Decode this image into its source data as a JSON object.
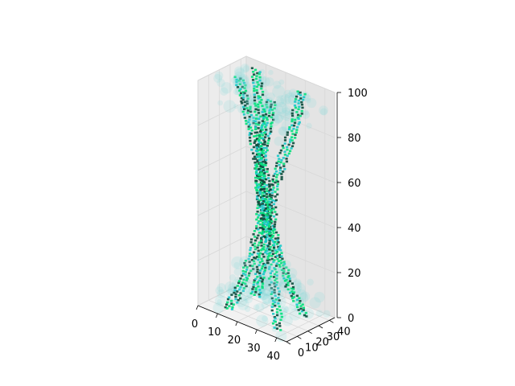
{
  "chart_data": {
    "type": "scatter",
    "projection": "3d",
    "title": "",
    "xlabel": "",
    "ylabel": "",
    "zlabel": "",
    "xlim": [
      0,
      45
    ],
    "ylim": [
      0,
      45
    ],
    "zlim": [
      0,
      100
    ],
    "xticks": [
      "0",
      "10",
      "20",
      "30",
      "40"
    ],
    "yticks": [
      "0",
      "10",
      "20",
      "30",
      "40"
    ],
    "zticks": [
      "0",
      "20",
      "40",
      "60",
      "80",
      "100"
    ],
    "grid": true,
    "legend": "none",
    "colormap": "winter (green-cyan-blue), semi-transparent voxels",
    "structure": "four helical twisted columns spanning z 0-100, widening into diffuse cyan clouds near z 0-20 and z 85-100",
    "series": [
      {
        "points": [
          [
            10,
            10,
            0
          ],
          [
            15,
            12,
            10
          ],
          [
            20,
            14,
            25
          ],
          [
            22,
            18,
            40
          ],
          [
            20,
            22,
            55
          ],
          [
            16,
            25,
            70
          ],
          [
            12,
            24,
            85
          ],
          [
            10,
            20,
            100
          ]
        ]
      },
      {
        "points": [
          [
            35,
            10,
            0
          ],
          [
            32,
            14,
            10
          ],
          [
            28,
            18,
            25
          ],
          [
            24,
            20,
            40
          ],
          [
            22,
            18,
            55
          ],
          [
            24,
            14,
            70
          ],
          [
            28,
            12,
            85
          ],
          [
            32,
            10,
            100
          ]
        ]
      },
      {
        "points": [
          [
            35,
            35,
            0
          ],
          [
            30,
            32,
            10
          ],
          [
            26,
            28,
            25
          ],
          [
            24,
            24,
            40
          ],
          [
            26,
            22,
            55
          ],
          [
            30,
            24,
            70
          ],
          [
            34,
            28,
            85
          ],
          [
            35,
            32,
            100
          ]
        ]
      },
      {
        "points": [
          [
            10,
            35,
            0
          ],
          [
            14,
            32,
            10
          ],
          [
            18,
            30,
            25
          ],
          [
            20,
            28,
            40
          ],
          [
            18,
            30,
            55
          ],
          [
            14,
            32,
            70
          ],
          [
            12,
            35,
            85
          ],
          [
            10,
            36,
            100
          ]
        ]
      }
    ],
    "colors": {
      "pane_left": "#ececec",
      "pane_right": "#e4e4e4",
      "pane_floor": "#f2f2f2",
      "grid": "#d8d8d8",
      "dark_green": "#0a4a3a",
      "green": "#00e07a",
      "cyan": "#17c9c9",
      "haze": "#7fd6d6"
    }
  }
}
